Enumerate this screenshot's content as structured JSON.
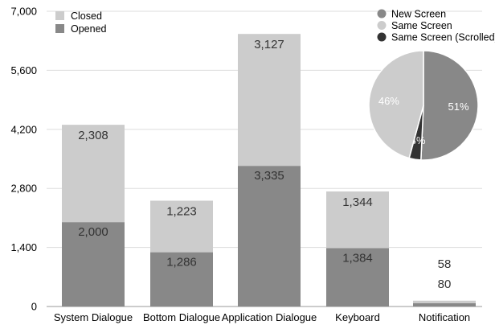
{
  "chart_data": [
    {
      "type": "bar",
      "stacked": true,
      "categories": [
        "System Dialogue",
        "Bottom Dialogue",
        "Application Dialogue",
        "Keyboard",
        "Notification"
      ],
      "series": [
        {
          "name": "Opened",
          "color": "#888888",
          "values": [
            2000,
            1286,
            3335,
            1384,
            80
          ]
        },
        {
          "name": "Closed",
          "color": "#cccccc",
          "values": [
            2308,
            1223,
            3127,
            1344,
            58
          ]
        }
      ],
      "data_labels": {
        "opened": [
          "2,000",
          "1,286",
          "3,335",
          "1,384",
          "80"
        ],
        "closed": [
          "2,308",
          "1,223",
          "3,127",
          "1,344",
          "58"
        ]
      },
      "yticks": [
        {
          "value": 0,
          "label": "0"
        },
        {
          "value": 1400,
          "label": "1,400"
        },
        {
          "value": 2800,
          "label": "2,800"
        },
        {
          "value": 4200,
          "label": "4,200"
        },
        {
          "value": 5600,
          "label": "5,600"
        },
        {
          "value": 7000,
          "label": "7,000"
        }
      ],
      "ylim": [
        0,
        7000
      ],
      "grid": true,
      "legend_position": "top-left",
      "legend_order": [
        "Closed",
        "Opened"
      ]
    },
    {
      "type": "pie",
      "slices": [
        {
          "name": "New Screen",
          "value": 51,
          "label": "51%",
          "color": "#888888"
        },
        {
          "name": "Same Screen (Scrolled)",
          "value": 3.5,
          "label": "4%",
          "color": "#333333"
        },
        {
          "name": "Same Screen",
          "value": 46,
          "label": "46%",
          "color": "#cccccc"
        }
      ],
      "legend_position": "top-right",
      "legend_order": [
        "New Screen",
        "Same Screen",
        "Same Screen (Scrolled)"
      ]
    }
  ]
}
